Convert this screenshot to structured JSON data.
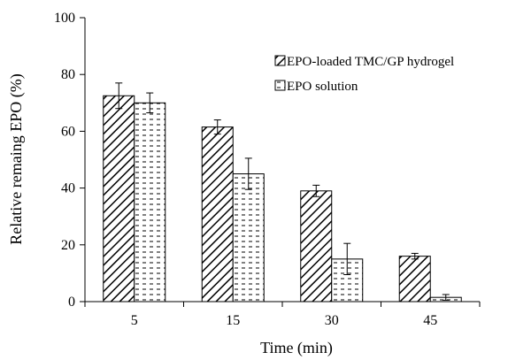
{
  "chart_data": {
    "type": "bar",
    "title": "",
    "xlabel": "Time (min)",
    "ylabel": "Relative remaing EPO (%)",
    "categories": [
      "5",
      "15",
      "30",
      "45"
    ],
    "ylim": [
      0,
      100
    ],
    "yticks": [
      "0",
      "20",
      "40",
      "60",
      "80",
      "100"
    ],
    "grid": false,
    "legend_position": "top-right",
    "series": [
      {
        "name": "EPO-loaded TMC/GP hydrogel",
        "pattern": "diagonal-hatch",
        "values": [
          72.5,
          61.5,
          39.0,
          16.0
        ],
        "errors": [
          4.5,
          2.5,
          2.0,
          1.0
        ]
      },
      {
        "name": "EPO solution",
        "pattern": "dashed-fill",
        "values": [
          70.0,
          45.0,
          15.0,
          1.5
        ],
        "errors": [
          3.5,
          5.5,
          5.5,
          1.0
        ]
      }
    ]
  }
}
